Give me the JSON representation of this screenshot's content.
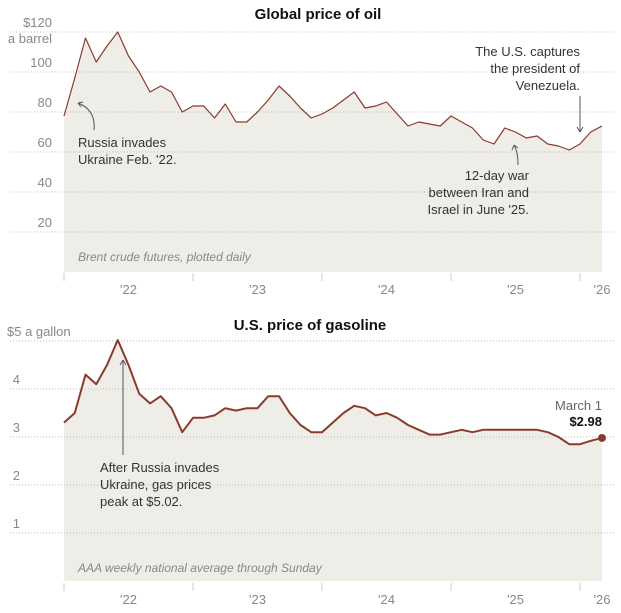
{
  "colors": {
    "line": "#8a3b2c",
    "fill": "#efede8",
    "grid": "#bbbbbb"
  },
  "chart_data": [
    {
      "type": "area",
      "title": "Global price of oil",
      "ylabel_unit": "a barrel",
      "y_ticks": [
        "$120",
        "100",
        "80",
        "60",
        "40",
        "20"
      ],
      "y_tick_values": [
        120,
        100,
        80,
        60,
        40,
        20
      ],
      "ylim": [
        0,
        120
      ],
      "x_ticks": [
        "'22",
        "'23",
        "'24",
        "'25",
        "'26"
      ],
      "x_range": [
        "2022-01",
        "2026-03"
      ],
      "caption": "Brent crude futures, plotted daily",
      "x": [
        "2022-01",
        "2022-02",
        "2022-03",
        "2022-04",
        "2022-05",
        "2022-06",
        "2022-07",
        "2022-08",
        "2022-09",
        "2022-10",
        "2022-11",
        "2022-12",
        "2023-01",
        "2023-02",
        "2023-03",
        "2023-04",
        "2023-05",
        "2023-06",
        "2023-07",
        "2023-08",
        "2023-09",
        "2023-10",
        "2023-11",
        "2023-12",
        "2024-01",
        "2024-02",
        "2024-03",
        "2024-04",
        "2024-05",
        "2024-06",
        "2024-07",
        "2024-08",
        "2024-09",
        "2024-10",
        "2024-11",
        "2024-12",
        "2025-01",
        "2025-02",
        "2025-03",
        "2025-04",
        "2025-05",
        "2025-06",
        "2025-07",
        "2025-08",
        "2025-09",
        "2025-10",
        "2025-11",
        "2025-12",
        "2026-01",
        "2026-02",
        "2026-03"
      ],
      "values": [
        78,
        97,
        117,
        105,
        113,
        120,
        108,
        100,
        90,
        93,
        90,
        80,
        83,
        83,
        77,
        84,
        75,
        75,
        80,
        86,
        93,
        88,
        82,
        77,
        79,
        82,
        86,
        90,
        82,
        83,
        85,
        79,
        73,
        75,
        74,
        73,
        78,
        75,
        72,
        66,
        64,
        72,
        70,
        67,
        68,
        64,
        63,
        61,
        64,
        70,
        73
      ],
      "annotations": [
        {
          "lines": [
            "Russia invades",
            "Ukraine Feb. '22."
          ]
        },
        {
          "lines": [
            "12-day war",
            "between Iran and",
            "Israel in June '25."
          ]
        },
        {
          "lines": [
            "The U.S. captures",
            "the president of",
            "Venezuela."
          ]
        }
      ]
    },
    {
      "type": "area",
      "title": "U.S. price of gasoline",
      "ylabel_unit": "$5 a gallon",
      "y_ticks": [
        "4",
        "3",
        "2",
        "1"
      ],
      "y_tick_values": [
        4,
        3,
        2,
        1
      ],
      "ylim": [
        0,
        5
      ],
      "x_ticks": [
        "'22",
        "'23",
        "'24",
        "'25",
        "'26"
      ],
      "x_range": [
        "2022-01",
        "2026-03"
      ],
      "caption": "AAA weekly national average through Sunday",
      "x": [
        "2022-01",
        "2022-02",
        "2022-03",
        "2022-04",
        "2022-05",
        "2022-06",
        "2022-07",
        "2022-08",
        "2022-09",
        "2022-10",
        "2022-11",
        "2022-12",
        "2023-01",
        "2023-02",
        "2023-03",
        "2023-04",
        "2023-05",
        "2023-06",
        "2023-07",
        "2023-08",
        "2023-09",
        "2023-10",
        "2023-11",
        "2023-12",
        "2024-01",
        "2024-02",
        "2024-03",
        "2024-04",
        "2024-05",
        "2024-06",
        "2024-07",
        "2024-08",
        "2024-09",
        "2024-10",
        "2024-11",
        "2024-12",
        "2025-01",
        "2025-02",
        "2025-03",
        "2025-04",
        "2025-05",
        "2025-06",
        "2025-07",
        "2025-08",
        "2025-09",
        "2025-10",
        "2025-11",
        "2025-12",
        "2026-01",
        "2026-02",
        "2026-03"
      ],
      "values": [
        3.3,
        3.5,
        4.3,
        4.1,
        4.5,
        5.02,
        4.5,
        3.9,
        3.7,
        3.85,
        3.6,
        3.1,
        3.4,
        3.4,
        3.45,
        3.6,
        3.55,
        3.6,
        3.6,
        3.85,
        3.85,
        3.5,
        3.25,
        3.1,
        3.1,
        3.3,
        3.5,
        3.65,
        3.6,
        3.45,
        3.5,
        3.4,
        3.25,
        3.15,
        3.05,
        3.05,
        3.1,
        3.15,
        3.1,
        3.15,
        3.15,
        3.15,
        3.15,
        3.15,
        3.15,
        3.1,
        3.0,
        2.85,
        2.85,
        2.92,
        2.98
      ],
      "annotations": [
        {
          "lines": [
            "After Russia invades",
            "Ukraine, gas prices",
            "peak at $5.02."
          ]
        },
        {
          "lines": [
            "March 1"
          ],
          "value": "$2.98"
        }
      ]
    }
  ]
}
